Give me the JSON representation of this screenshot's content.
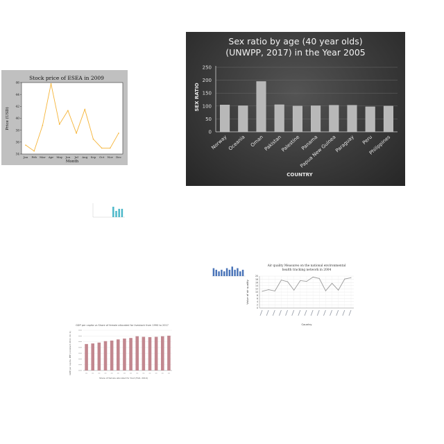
{
  "chart_data": [
    {
      "id": "stock",
      "type": "line",
      "title": "Stock price of ESEA in 2009",
      "xlabel": "Month",
      "ylabel": "Price (USD)",
      "categories": [
        "Jan",
        "Feb",
        "Mar",
        "Apr",
        "May",
        "Jun",
        "Jul",
        "Aug",
        "Sep",
        "Oct",
        "Nov",
        "Dec"
      ],
      "values": [
        35.5,
        34.5,
        38.8,
        45.8,
        39,
        41.3,
        37.5,
        41.5,
        36.5,
        35,
        35,
        37.5
      ],
      "yticks": [
        "34",
        "36",
        "38",
        "40",
        "42",
        "44",
        "46"
      ],
      "ylim": [
        34,
        46
      ],
      "color": "#f5b335",
      "grid": false
    },
    {
      "id": "sexratio",
      "type": "bar",
      "title_line1": "Sex ratio by age (40 year olds)",
      "title_line2": "(UNWPP, 2017) in the Year 2005",
      "xlabel": "COUNTRY",
      "ylabel": "SEX RATIO",
      "categories": [
        "Norway",
        "Oceania",
        "Oman",
        "Pakistan",
        "Palestine",
        "Panama",
        "Papua New Guinea",
        "Paraguay",
        "Peru",
        "Philippines"
      ],
      "values": [
        104,
        101,
        195,
        105,
        100,
        101,
        103,
        103,
        97,
        100
      ],
      "yticks": [
        "0",
        "50",
        "100",
        "150",
        "200",
        "250"
      ],
      "ylim": [
        0,
        250
      ],
      "grid": true
    },
    {
      "id": "tiny-teal",
      "type": "bar",
      "values": [
        0,
        0,
        0,
        0,
        0,
        0,
        5,
        3,
        4,
        4
      ],
      "ylim": [
        0,
        6
      ],
      "color": "#4db8c9"
    },
    {
      "id": "tiny-blue",
      "type": "bar",
      "values": [
        5,
        4,
        3,
        4,
        3,
        5,
        4,
        6,
        4,
        5,
        3,
        4
      ],
      "ylim": [
        0,
        7
      ],
      "color": "#4a74b8"
    },
    {
      "id": "airquality",
      "type": "line",
      "title_line1": "Air quality Measures on the national environmental",
      "title_line2": "health tracking network in 2004",
      "xlabel": "Country",
      "ylabel": "Value of air quality",
      "values": [
        10.5,
        11.5,
        10.7,
        17.5,
        16.5,
        11.2,
        17.2,
        16.7,
        19.4,
        18.5,
        10.8,
        15.5,
        11.2,
        18.2,
        19
      ],
      "yticks": [
        "0",
        "2",
        "4",
        "6",
        "8",
        "10",
        "12",
        "14",
        "16",
        "18",
        "20"
      ],
      "ylim": [
        0,
        20
      ],
      "color": "#999999",
      "grid": true
    },
    {
      "id": "gdp",
      "type": "bar",
      "title": "GDP per capita vs Share of female allocated for livestock from 1990 to 2017",
      "xlabel": "Share of female allocated for food (FAO, 2019)",
      "ylabel": "GDP per capita, PPP (constant 2011 int. $)",
      "values": [
        9200,
        9400,
        9700,
        10200,
        10400,
        10800,
        11100,
        11300,
        11900,
        11700,
        11600,
        11700,
        11900,
        12100
      ],
      "ylim": [
        0,
        14000
      ],
      "color": "#c2878f",
      "grid": true
    }
  ]
}
